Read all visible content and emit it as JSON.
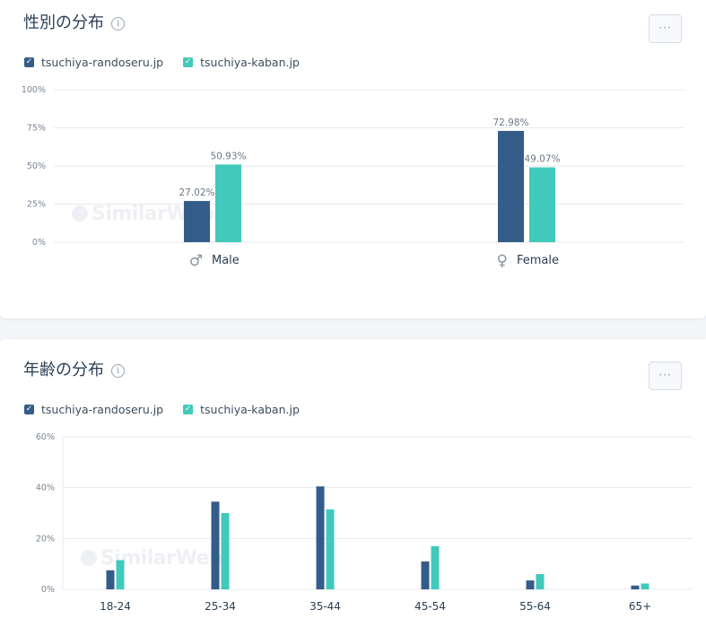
{
  "colors": {
    "series1": "#345c88",
    "series2": "#41c9bb",
    "grid": "#e6e9ee",
    "axis_text": "#7a8591"
  },
  "gender_card": {
    "title": "性別の分布",
    "more_label": "···",
    "legend": [
      "tsuchiya-randoseru.jp",
      "tsuchiya-kaban.jp"
    ],
    "gender_icons": {
      "male": "male-symbol-icon",
      "female": "female-symbol-icon"
    },
    "watermark": "SimilarWeb"
  },
  "age_card": {
    "title": "年齢の分布",
    "more_label": "···",
    "legend": [
      "tsuchiya-randoseru.jp",
      "tsuchiya-kaban.jp"
    ],
    "watermark": "SimilarWeb"
  },
  "chart_data": [
    {
      "type": "bar",
      "categories": [
        "Male",
        "Female"
      ],
      "series": [
        {
          "name": "tsuchiya-randoseru.jp",
          "values": [
            27.02,
            72.98
          ],
          "labels": [
            "27.02%",
            "72.98%"
          ]
        },
        {
          "name": "tsuchiya-kaban.jp",
          "values": [
            50.93,
            49.07
          ],
          "labels": [
            "50.93%",
            "49.07%"
          ]
        }
      ],
      "yticks": [
        "0%",
        "25%",
        "50%",
        "75%",
        "100%"
      ],
      "ylim": [
        0,
        100
      ],
      "grid": true,
      "legend_position": "top-left"
    },
    {
      "type": "bar",
      "categories": [
        "18-24",
        "25-34",
        "35-44",
        "45-54",
        "55-64",
        "65+"
      ],
      "series": [
        {
          "name": "tsuchiya-randoseru.jp",
          "values": [
            7.5,
            34.5,
            40.5,
            11,
            3.5,
            1.5
          ]
        },
        {
          "name": "tsuchiya-kaban.jp",
          "values": [
            11.5,
            30,
            31.5,
            17,
            6,
            2.3
          ]
        }
      ],
      "yticks": [
        "0%",
        "20%",
        "40%",
        "60%"
      ],
      "ylim": [
        0,
        60
      ],
      "grid": true,
      "legend_position": "top-left"
    }
  ]
}
